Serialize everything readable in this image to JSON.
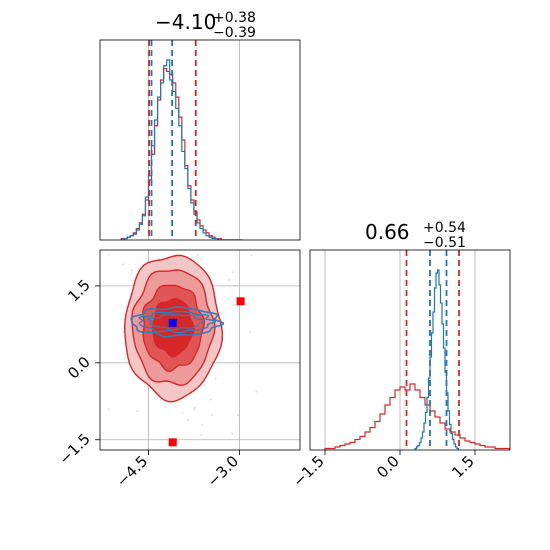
{
  "chart_data": [
    {
      "type": "histogram",
      "panel": "top-left",
      "title": {
        "value": "−4.10",
        "upper": "+0.38",
        "lower": "−0.39"
      },
      "xlim": [
        -5.3,
        -2.0
      ],
      "grid": true,
      "bin_start": -4.95,
      "bin_width": 0.05,
      "series": [
        {
          "name": "",
          "color": "#d62728",
          "counts": [
            1,
            1,
            2,
            3,
            5,
            8,
            12,
            18,
            28,
            42,
            60,
            80,
            98,
            112,
            120,
            118,
            116,
            110,
            100,
            86,
            70,
            52,
            38,
            28,
            20,
            14,
            10,
            7,
            5,
            3,
            2,
            1,
            1,
            0,
            0,
            0,
            0,
            0,
            0,
            0
          ]
        },
        {
          "name": "",
          "color": "#1f77b4",
          "counts": [
            0,
            1,
            2,
            3,
            4,
            7,
            11,
            17,
            30,
            45,
            66,
            84,
            100,
            110,
            122,
            126,
            112,
            104,
            92,
            80,
            62,
            50,
            36,
            26,
            18,
            12,
            8,
            5,
            3,
            2,
            1,
            1,
            0,
            0,
            0,
            0,
            0,
            0,
            0,
            0
          ]
        }
      ],
      "vlines": [
        {
          "x": -4.49,
          "color": "#d62728"
        },
        {
          "x": -3.72,
          "color": "#d62728"
        },
        {
          "x": -4.45,
          "color": "#1f77b4"
        },
        {
          "x": -4.11,
          "color": "#1f77b4"
        }
      ]
    },
    {
      "type": "contour",
      "panel": "bottom-left",
      "xlim": [
        -5.3,
        -2.0
      ],
      "ylim": [
        -1.7,
        2.2
      ],
      "xticks": [
        "−4.5",
        "−3.0"
      ],
      "yticks": [
        "−1.5",
        "0.0",
        "1.5"
      ],
      "xtick_values": [
        -4.5,
        -3.0
      ],
      "ytick_values": [
        -1.5,
        0.0,
        1.5
      ],
      "grid": true,
      "red_center": [
        -4.1,
        0.7
      ],
      "blue_center": [
        -4.05,
        0.8
      ],
      "markers": [
        {
          "x": -4.1,
          "y": 0.78,
          "color": "#0000ff"
        },
        {
          "x": -2.98,
          "y": 1.2,
          "color": "#ff0000"
        },
        {
          "x": -4.1,
          "y": -1.55,
          "color": "#ff0000"
        }
      ]
    },
    {
      "type": "histogram",
      "panel": "bottom-right",
      "title": {
        "value": "0.66",
        "upper": "+0.54",
        "lower": "−0.51"
      },
      "xlim": [
        -1.8,
        2.2
      ],
      "xticks": [
        "−1.5",
        "0.0",
        "1.5"
      ],
      "xtick_values": [
        -1.5,
        0.0,
        1.5
      ],
      "grid": true,
      "vlines": [
        {
          "x": 0.13,
          "color": "#d62728"
        },
        {
          "x": 1.18,
          "color": "#d62728"
        },
        {
          "x": 0.6,
          "color": "#1f77b4"
        },
        {
          "x": 0.93,
          "color": "#1f77b4"
        }
      ],
      "series": [
        {
          "name": "",
          "color": "#d62728",
          "bin_start": -1.5,
          "bin_width": 0.1,
          "counts": [
            1,
            1,
            2,
            3,
            4,
            5,
            7,
            9,
            12,
            15,
            19,
            24,
            30,
            35,
            40,
            42,
            40,
            44,
            40,
            35,
            30,
            26,
            22,
            18,
            14,
            12,
            10,
            8,
            6,
            5,
            4,
            3,
            2,
            2,
            1,
            1,
            1
          ]
        },
        {
          "name": "",
          "color": "#1f77b4",
          "bin_start": 0.3,
          "bin_width": 0.03,
          "counts": [
            1,
            2,
            3,
            5,
            8,
            12,
            18,
            25,
            35,
            48,
            62,
            78,
            92,
            108,
            118,
            120,
            110,
            98,
            84,
            68,
            52,
            38,
            26,
            17,
            11,
            7,
            4,
            2,
            1
          ]
        }
      ]
    }
  ]
}
